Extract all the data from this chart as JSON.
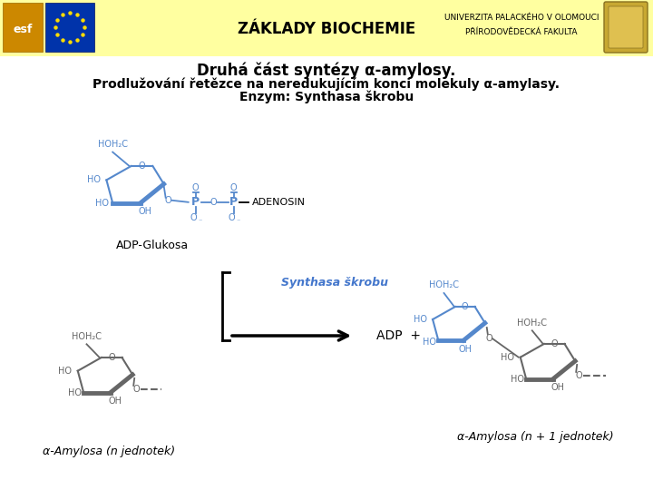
{
  "title_line1": "Druhá část syntézy α-amylosy.",
  "title_line2": "Prodlužování řetězce na neredukujícím konci molekuly α-amylasy.",
  "title_line3": "Enzym: Synthasa škrobu",
  "header_text": "ZÁKLADY BIOCHEMIE",
  "university_line1": "UNIVERZITA PALACKÉHO V OLOMOUCI",
  "university_line2": "PŘÍRODOVĚDECKÁ FAKULTA",
  "adp_glukosa_label": "ADP-Glukosa",
  "synthasa_label": "Synthasa škrobu",
  "adp_label": "ADP  +",
  "adenosin_label": "ADENOSIN",
  "amylosa_n_label": "α-Amylosa (n jednotek)",
  "amylosa_n1_label": "α-Amylosa (n + 1 jednotek)",
  "bg_color": "#ffffa0",
  "white_bg": "#ffffff",
  "blue_color": "#5588cc",
  "dark_gray": "#666666",
  "black": "#000000",
  "synthasa_color": "#4477cc",
  "p_color": "#000000"
}
